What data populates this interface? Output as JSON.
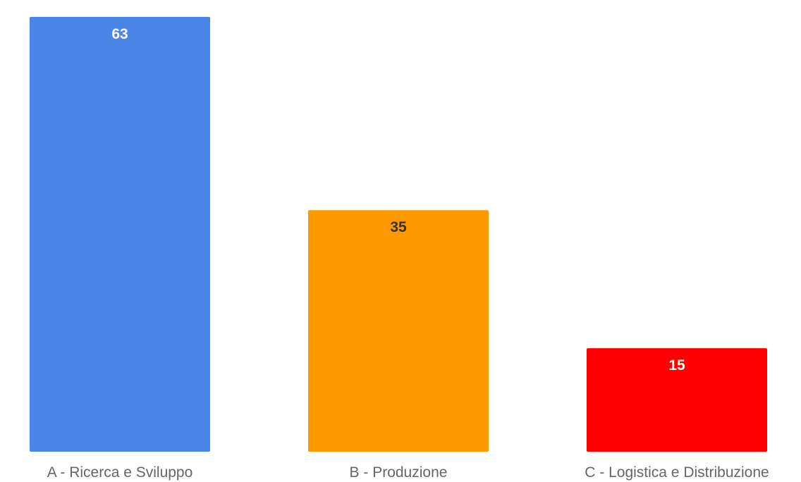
{
  "chart_data": {
    "type": "bar",
    "title": "",
    "xlabel": "",
    "ylabel": "",
    "categories": [
      "A - Ricerca e Sviluppo",
      "B - Produzione",
      "C - Logistica e Distribuzione"
    ],
    "values": [
      63,
      35,
      15
    ],
    "value_labels": [
      "63",
      "35",
      "15"
    ],
    "colors": [
      "#4a86e8",
      "#ff9900",
      "#ff0000"
    ],
    "value_label_colors": [
      "#ffffff",
      "#333333",
      "#ffffff"
    ],
    "ylim": [
      0,
      63
    ],
    "grid": false,
    "legend": "none"
  }
}
